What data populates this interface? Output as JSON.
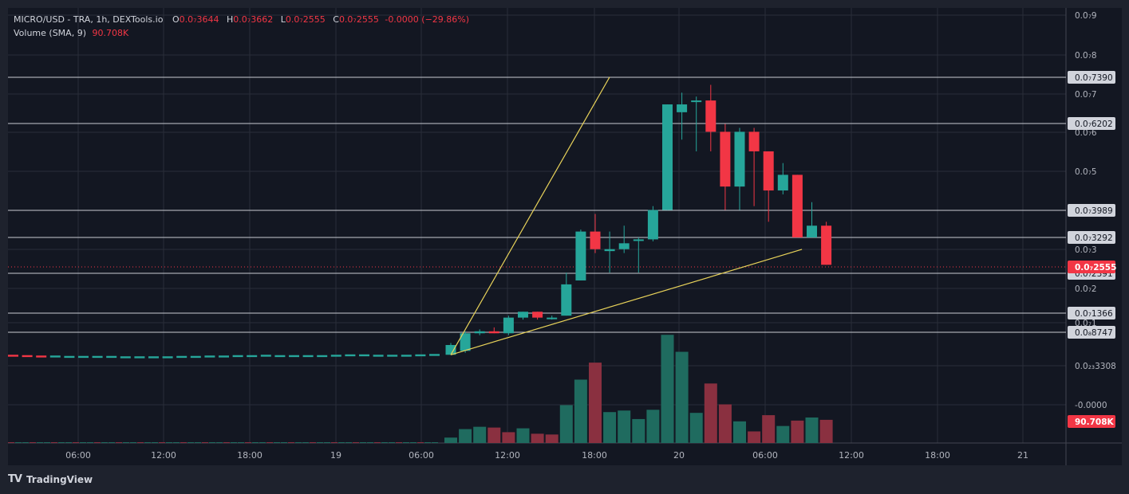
{
  "header": {
    "title": "MICRO/USD - TRA, 1h, DEXTools.io",
    "ohlc": {
      "o_label": "O",
      "o": "0.0₇3644",
      "h_label": "H",
      "h": "0.0₇3662",
      "l_label": "L",
      "l": "0.0₇2555",
      "c_label": "C",
      "c": "0.0₇2555",
      "change": "-0.0000 (−29.86%)"
    },
    "volume_label": "Volume (SMA, 9)",
    "volume_value": "90.708K"
  },
  "footer": {
    "brand": "TradingView",
    "logo_text": "TV"
  },
  "colors": {
    "background": "#1e222d",
    "bull": "#26a69a",
    "bear": "#f23645",
    "bull_volume": "#1f6b5f",
    "bear_volume": "#8a3040",
    "trendline": "#e9d35a",
    "level": "#c8cbd2",
    "grid": "#2a2e39"
  },
  "chart_data": {
    "type": "candlestick",
    "x_ticks": [
      "06:00",
      "12:00",
      "18:00",
      "19",
      "06:00",
      "12:00",
      "18:00",
      "20",
      "06:00",
      "12:00",
      "18:00",
      "21"
    ],
    "y_ticks": [
      "0.0₇9",
      "0.0₇8",
      "0.0₇7",
      "0.0₇6",
      "0.0₇5",
      "0.0₇4",
      "0.0₇3",
      "0.0₇2",
      "0.0₇1",
      "0.0₂₃3308",
      "-0.0000"
    ],
    "y_tick_values": [
      0.9,
      0.8,
      0.7,
      0.6,
      0.5,
      0.4,
      0.3,
      0.2,
      0.1,
      0.0,
      -0.1
    ],
    "horizontal_levels": [
      {
        "label": "0.0₇7390",
        "value": 0.739
      },
      {
        "label": "0.0₇6202",
        "value": 0.6202
      },
      {
        "label": "0.0₇3989",
        "value": 0.3989
      },
      {
        "label": "0.0₇3292",
        "value": 0.3292
      },
      {
        "label": "0.0₇2391",
        "value": 0.2391
      },
      {
        "label": "0.0₇1366",
        "value": 0.1366
      },
      {
        "label": "0.0₈8747",
        "value": 0.0875
      }
    ],
    "last_price": {
      "label": "0.0₇2555",
      "value": 0.2555
    },
    "volume_badge": "90.708K",
    "trendlines": [
      {
        "from": [
          8.0,
          0.03
        ],
        "to": [
          19.0,
          0.74
        ]
      },
      {
        "from": [
          8.0,
          0.03
        ],
        "to": [
          29.0,
          0.275
        ]
      }
    ],
    "pre_candles": [
      0.028,
      0.027,
      0.026,
      0.026,
      0.025,
      0.025,
      0.025,
      0.025,
      0.024,
      0.024,
      0.024,
      0.024,
      0.025,
      0.025,
      0.026,
      0.026,
      0.027,
      0.027,
      0.028,
      0.027,
      0.027,
      0.027,
      0.027,
      0.028,
      0.029,
      0.029,
      0.028,
      0.028,
      0.028,
      0.029,
      0.03
    ],
    "candles": [
      {
        "i": 8,
        "o": 0.03,
        "h": 0.06,
        "l": 0.03,
        "c": 0.055
      },
      {
        "i": 9,
        "o": 0.04,
        "h": 0.09,
        "l": 0.035,
        "c": 0.085
      },
      {
        "i": 10,
        "o": 0.085,
        "h": 0.095,
        "l": 0.08,
        "c": 0.09
      },
      {
        "i": 11,
        "o": 0.09,
        "h": 0.1,
        "l": 0.085,
        "c": 0.085
      },
      {
        "i": 12,
        "o": 0.085,
        "h": 0.13,
        "l": 0.08,
        "c": 0.125
      },
      {
        "i": 13,
        "o": 0.125,
        "h": 0.14,
        "l": 0.12,
        "c": 0.14
      },
      {
        "i": 14,
        "o": 0.14,
        "h": 0.14,
        "l": 0.12,
        "c": 0.125
      },
      {
        "i": 15,
        "o": 0.125,
        "h": 0.13,
        "l": 0.12,
        "c": 0.125
      },
      {
        "i": 16,
        "o": 0.13,
        "h": 0.24,
        "l": 0.13,
        "c": 0.21
      },
      {
        "i": 17,
        "o": 0.22,
        "h": 0.35,
        "l": 0.22,
        "c": 0.345
      },
      {
        "i": 18,
        "o": 0.345,
        "h": 0.39,
        "l": 0.29,
        "c": 0.3
      },
      {
        "i": 19,
        "o": 0.295,
        "h": 0.345,
        "l": 0.24,
        "c": 0.3
      },
      {
        "i": 20,
        "o": 0.3,
        "h": 0.36,
        "l": 0.29,
        "c": 0.315
      },
      {
        "i": 21,
        "o": 0.325,
        "h": 0.33,
        "l": 0.24,
        "c": 0.325
      },
      {
        "i": 22,
        "o": 0.325,
        "h": 0.41,
        "l": 0.32,
        "c": 0.4
      },
      {
        "i": 23,
        "o": 0.4,
        "h": 0.67,
        "l": 0.4,
        "c": 0.67
      },
      {
        "i": 24,
        "o": 0.65,
        "h": 0.7,
        "l": 0.58,
        "c": 0.67
      },
      {
        "i": 25,
        "o": 0.68,
        "h": 0.69,
        "l": 0.55,
        "c": 0.68
      },
      {
        "i": 26,
        "o": 0.68,
        "h": 0.72,
        "l": 0.55,
        "c": 0.6
      },
      {
        "i": 27,
        "o": 0.6,
        "h": 0.62,
        "l": 0.4,
        "c": 0.46
      },
      {
        "i": 28,
        "o": 0.46,
        "h": 0.61,
        "l": 0.4,
        "c": 0.6
      },
      {
        "i": 29,
        "o": 0.6,
        "h": 0.61,
        "l": 0.41,
        "c": 0.55
      },
      {
        "i": 30,
        "o": 0.55,
        "h": 0.55,
        "l": 0.37,
        "c": 0.45
      },
      {
        "i": 31,
        "o": 0.45,
        "h": 0.52,
        "l": 0.44,
        "c": 0.49
      },
      {
        "i": 32,
        "o": 0.49,
        "h": 0.49,
        "l": 0.33,
        "c": 0.33
      },
      {
        "i": 33,
        "o": 0.33,
        "h": 0.42,
        "l": 0.33,
        "c": 0.36
      },
      {
        "i": 34,
        "o": 0.36,
        "h": 0.37,
        "l": 0.26,
        "c": 0.26
      }
    ],
    "volume": [
      0.04,
      0.04,
      0.04,
      0.03,
      0.03,
      0.03,
      0.03,
      0.02,
      0.02,
      0.02,
      0.02,
      0.02,
      0.02,
      0.02,
      0.02,
      0.02,
      0.02,
      0.03,
      0.03,
      0.02,
      0.02,
      0.02,
      0.02,
      0.02,
      0.02,
      0.02,
      0.02,
      0.02,
      0.03,
      0.02,
      0.02,
      0.03,
      0.03,
      0.03,
      0.03,
      0.03,
      0.03,
      0.03,
      0.03,
      0.03,
      0.03,
      0.03,
      0.04,
      0.03,
      0.03,
      0.03,
      0.03,
      0.04,
      0.04,
      0.04,
      0.04,
      0.04,
      0.04,
      0.04,
      0.04,
      0.04,
      0.04,
      0.04,
      0.05,
      0.05,
      0.05,
      0.05,
      0.05,
      0.06,
      0.07,
      0.18,
      0.29,
      0.37,
      0.4,
      0.31,
      0.26,
      0.32,
      0.19,
      0.19,
      0.63,
      0.59,
      0.76,
      0.53,
      0.53,
      0.39,
      0.28,
      0.6,
      0.39,
      0.44,
      0.84,
      0.98,
      0.64,
      0.58,
      0.58,
      0.19,
      0.37,
      0.55,
      0.34,
      0.29,
      0.29,
      0.28,
      0.25,
      0.24,
      0.23,
      0.21
    ],
    "volume_candles": [
      {
        "i": 8,
        "v": 0.07,
        "up": true
      },
      {
        "i": 9,
        "v": 0.18,
        "up": true
      },
      {
        "i": 10,
        "v": 0.21,
        "up": true
      },
      {
        "i": 11,
        "v": 0.2,
        "up": false
      },
      {
        "i": 12,
        "v": 0.14,
        "up": false
      },
      {
        "i": 13,
        "v": 0.19,
        "up": true
      },
      {
        "i": 14,
        "v": 0.12,
        "up": false
      },
      {
        "i": 15,
        "v": 0.11,
        "up": false
      },
      {
        "i": 16,
        "v": 0.49,
        "up": true
      },
      {
        "i": 17,
        "v": 0.82,
        "up": true
      },
      {
        "i": 18,
        "v": 1.04,
        "up": false
      },
      {
        "i": 19,
        "v": 0.4,
        "up": true
      },
      {
        "i": 20,
        "v": 0.42,
        "up": true
      },
      {
        "i": 21,
        "v": 0.31,
        "up": true
      },
      {
        "i": 22,
        "v": 0.43,
        "up": true
      },
      {
        "i": 23,
        "v": 1.4,
        "up": true
      },
      {
        "i": 24,
        "v": 1.18,
        "up": true
      },
      {
        "i": 25,
        "v": 0.39,
        "up": true
      },
      {
        "i": 26,
        "v": 0.77,
        "up": false
      },
      {
        "i": 27,
        "v": 0.5,
        "up": false
      },
      {
        "i": 28,
        "v": 0.28,
        "up": true
      },
      {
        "i": 29,
        "v": 0.15,
        "up": false
      },
      {
        "i": 30,
        "v": 0.36,
        "up": false
      },
      {
        "i": 31,
        "v": 0.22,
        "up": true
      },
      {
        "i": 32,
        "v": 0.29,
        "up": false
      },
      {
        "i": 33,
        "v": 0.33,
        "up": true
      },
      {
        "i": 34,
        "v": 0.3,
        "up": false
      }
    ]
  }
}
